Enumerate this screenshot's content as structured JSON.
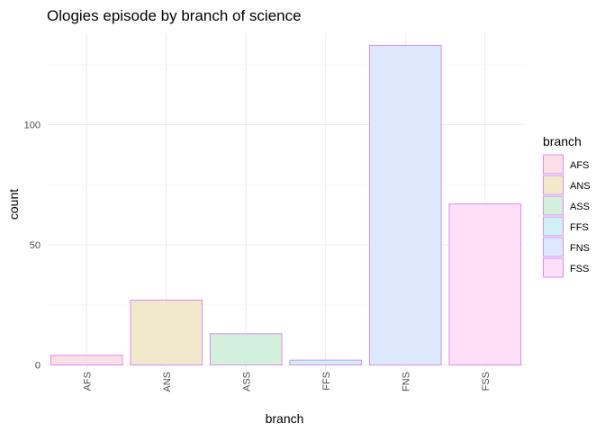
{
  "chart_data": {
    "type": "bar",
    "title": "Ologies episode by branch of science",
    "xlabel": "branch",
    "ylabel": "count",
    "categories": [
      "AFS",
      "ANS",
      "ASS",
      "FFS",
      "FNS",
      "FSS"
    ],
    "values": [
      4,
      27,
      13,
      2,
      133,
      67
    ],
    "ylim": [
      0,
      140
    ],
    "yticks": [
      0,
      50,
      100
    ],
    "ytick_labels": [
      "0",
      "50",
      "100"
    ],
    "grid": true,
    "bar_fill_colors": [
      "#fde0e6",
      "#f2e8cb",
      "#d2f0dc",
      "#cff0f4",
      "#dee8fd",
      "#fddff8"
    ],
    "bar_outline_color": "#d98ef0",
    "legend": {
      "title": "branch",
      "placement": "right",
      "entries": [
        "AFS",
        "ANS",
        "ASS",
        "FFS",
        "FNS",
        "FSS"
      ]
    }
  }
}
